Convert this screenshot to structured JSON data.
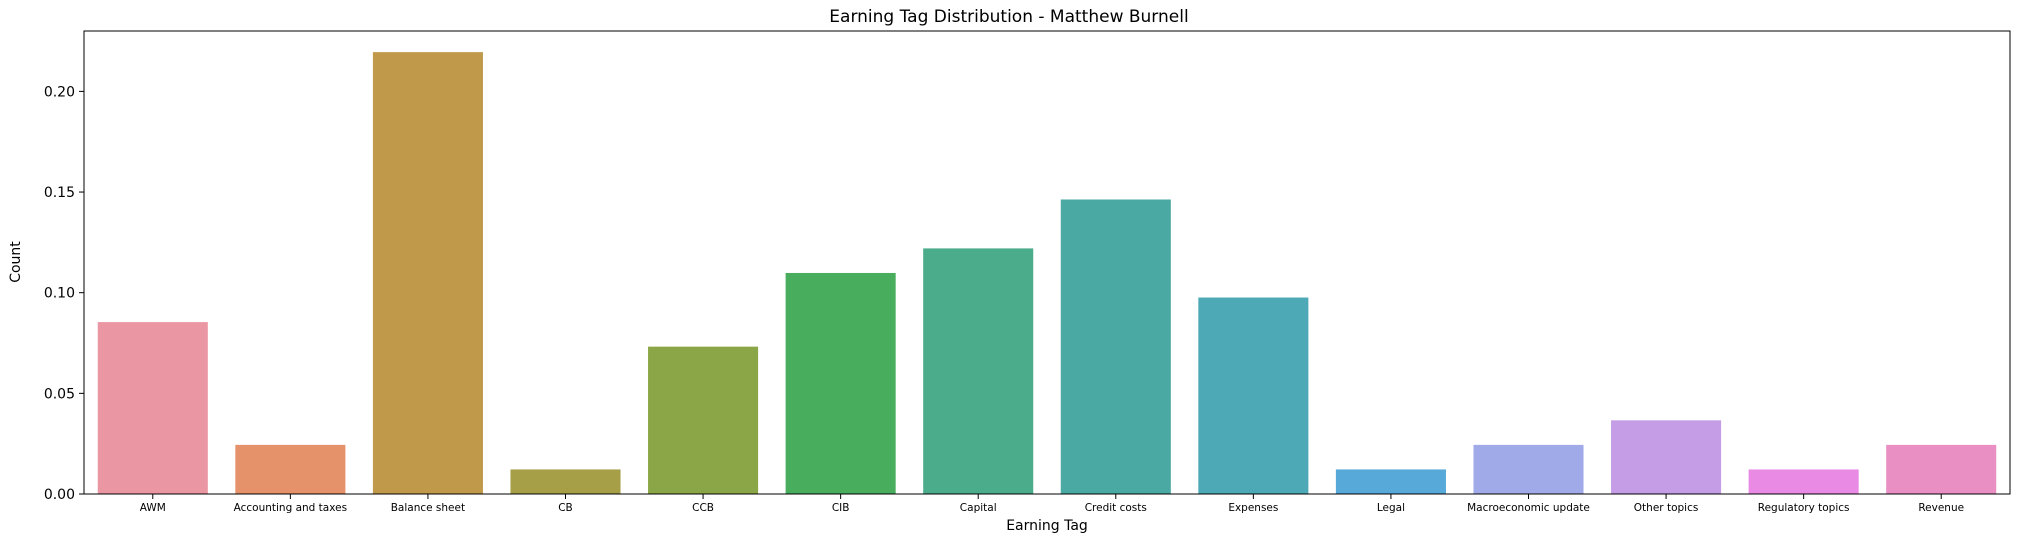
{
  "chart_data": {
    "type": "bar",
    "title": "Earning Tag Distribution - Matthew Burnell",
    "xlabel": "Earning Tag",
    "ylabel": "Count",
    "ylim": [
      0,
      0.23
    ],
    "yticks": [
      "0.00",
      "0.05",
      "0.10",
      "0.15",
      "0.20"
    ],
    "ytick_values": [
      0,
      0.05,
      0.1,
      0.15,
      0.2
    ],
    "grid": false,
    "categories": [
      "AWM",
      "Accounting and taxes",
      "Balance sheet",
      "CB",
      "CCB",
      "CIB",
      "Capital",
      "Credit costs",
      "Expenses",
      "Legal",
      "Macroeconomic update",
      "Other topics",
      "Regulatory topics",
      "Revenue"
    ],
    "values": [
      0.0854,
      0.0244,
      0.2195,
      0.0122,
      0.0732,
      0.1098,
      0.122,
      0.1463,
      0.0976,
      0.0122,
      0.0244,
      0.0366,
      0.0122,
      0.0244
    ],
    "colors": [
      "#ea96a3",
      "#e5916a",
      "#c0994a",
      "#a69f47",
      "#8ba646",
      "#48ad5d",
      "#4aac8b",
      "#4aa9a2",
      "#4da9b6",
      "#56a9d9",
      "#a1aae9",
      "#c59de7",
      "#e98ae5",
      "#e98fc4"
    ]
  }
}
